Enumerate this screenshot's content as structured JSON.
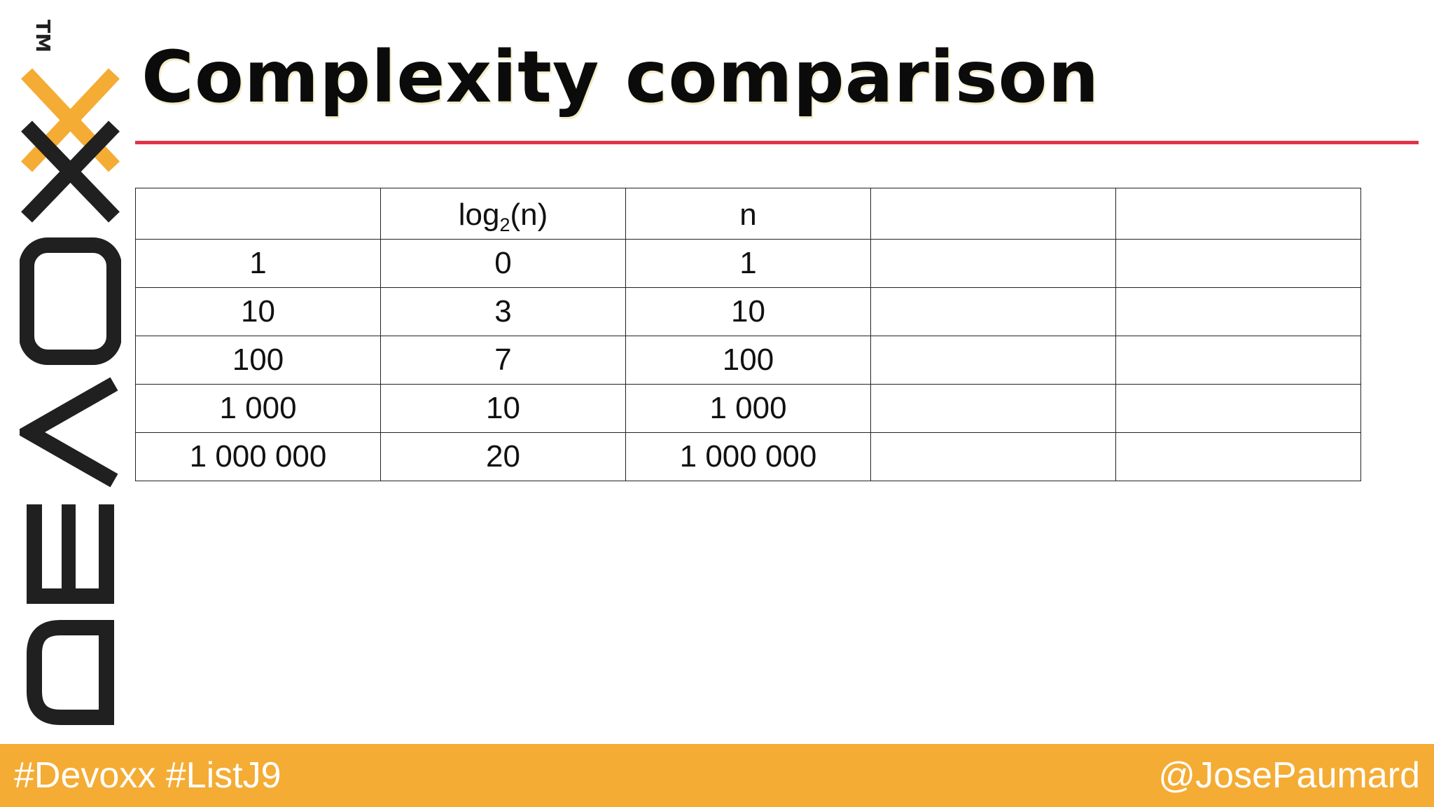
{
  "logo": {
    "wordmark": "DEVOXX",
    "trademark": "TM"
  },
  "slide": {
    "title": "Complexity comparison"
  },
  "table": {
    "header": {
      "col0": "",
      "col1_base": "log",
      "col1_sub": "2",
      "col1_suffix": "(n)",
      "col2": "n",
      "col3": "",
      "col4": ""
    },
    "rows": [
      [
        "1",
        "0",
        "1",
        "",
        ""
      ],
      [
        "10",
        "3",
        "10",
        "",
        ""
      ],
      [
        "100",
        "7",
        "100",
        "",
        ""
      ],
      [
        "1 000",
        "10",
        "1 000",
        "",
        ""
      ],
      [
        "1 000 000",
        "20",
        "1 000 000",
        "",
        ""
      ]
    ]
  },
  "footer": {
    "left": "#Devoxx #ListJ9",
    "right": "@JosePaumard"
  },
  "colors": {
    "accent_orange": "#f4ac34",
    "rule_red": "#e0334a",
    "logo_black": "#202020"
  }
}
